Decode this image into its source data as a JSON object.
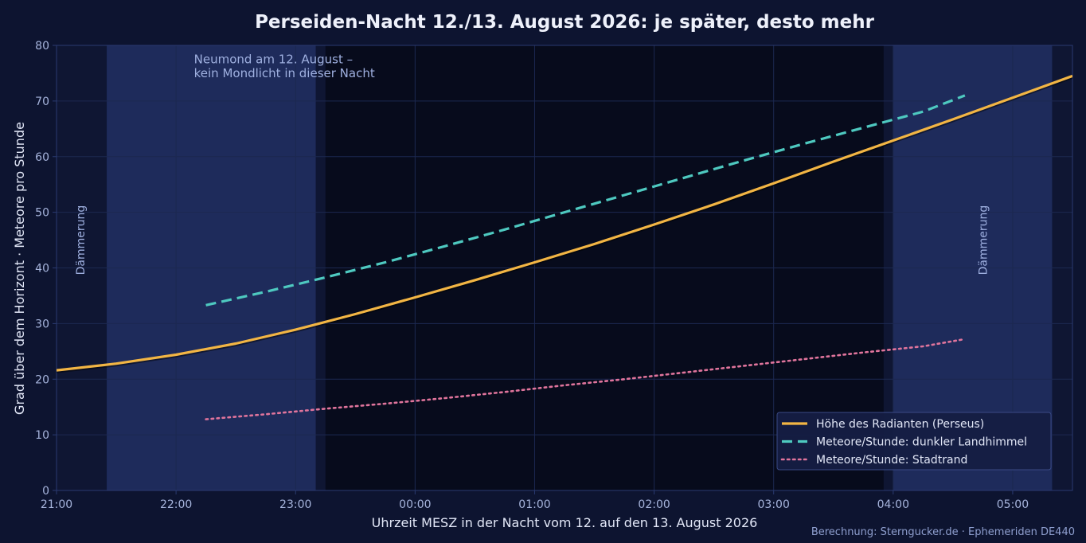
{
  "chart_data": {
    "type": "line",
    "title": "Perseiden-Nacht 12./13. August 2026: je später, desto mehr",
    "xlabel": "Uhrzeit MESZ in der Nacht vom 12. auf den 13. August 2026",
    "ylabel": "Grad über dem Horizont  ·  Meteore pro Stunde",
    "x_unit": "hours after 21:00 MESZ (12. August)",
    "xlim": [
      0,
      8.5
    ],
    "ylim": [
      0,
      80
    ],
    "xticks": [
      0,
      1,
      2,
      3,
      4,
      5,
      6,
      7,
      8
    ],
    "xtick_labels": [
      "21:00",
      "22:00",
      "23:00",
      "00:00",
      "01:00",
      "02:00",
      "03:00",
      "04:00",
      "05:00"
    ],
    "yticks": [
      0,
      10,
      20,
      30,
      40,
      50,
      60,
      70,
      80
    ],
    "grid": true,
    "legend_position": "lower-right",
    "shaded_regions": [
      {
        "label": "Dämmerung",
        "x0": 0,
        "x1": 0.42,
        "tone": "dark"
      },
      {
        "label": "",
        "x0": 0.42,
        "x1": 2.17,
        "tone": "light"
      },
      {
        "label": "",
        "x0": 2.17,
        "x1": 2.25,
        "tone": "dark"
      },
      {
        "label": "",
        "x0": 6.92,
        "x1": 7.0,
        "tone": "dark"
      },
      {
        "label": "Dämmerung",
        "x0": 7.0,
        "x1": 8.33,
        "tone": "light"
      },
      {
        "label": "",
        "x0": 8.33,
        "x1": 8.5,
        "tone": "dark"
      }
    ],
    "annotations": [
      {
        "text": "Neumond am 12. August –",
        "x": 1.15,
        "y": 77.5
      },
      {
        "text": "kein Mondlicht in dieser Nacht",
        "x": 1.15,
        "y": 75.0
      }
    ],
    "series": [
      {
        "name": "Höhe des Radianten (Perseus)",
        "color": "#f2b544",
        "style": "solid",
        "x": [
          0,
          0.5,
          1,
          1.5,
          2,
          2.5,
          3,
          3.5,
          4,
          4.5,
          5,
          5.5,
          6,
          6.5,
          7,
          7.5,
          8,
          8.5
        ],
        "y": [
          21.6,
          22.8,
          24.4,
          26.4,
          28.9,
          31.7,
          34.7,
          37.8,
          41.0,
          44.3,
          47.8,
          51.4,
          55.2,
          59.1,
          62.9,
          66.7,
          70.6,
          74.5
        ]
      },
      {
        "name": "Meteore/Stunde: dunkler Landhimmel",
        "color": "#4ec9c0",
        "style": "dashed",
        "x": [
          1.25,
          1.75,
          2.25,
          2.75,
          3.25,
          3.75,
          4.25,
          4.75,
          5.25,
          5.75,
          6.25,
          6.75,
          7.25,
          7.6
        ],
        "y": [
          33.3,
          35.7,
          38.3,
          41.0,
          43.9,
          46.9,
          50.0,
          53.1,
          56.2,
          59.3,
          62.3,
          65.2,
          68.1,
          71.0
        ]
      },
      {
        "name": "Meteore/Stunde: Stadtrand",
        "color": "#e0749c",
        "style": "dotted",
        "x": [
          1.25,
          1.75,
          2.25,
          2.75,
          3.25,
          3.75,
          4.25,
          4.75,
          5.25,
          5.75,
          6.25,
          6.75,
          7.25,
          7.6
        ],
        "y": [
          12.8,
          13.7,
          14.7,
          15.6,
          16.6,
          17.7,
          18.9,
          20.0,
          21.2,
          22.4,
          23.6,
          24.8,
          25.9,
          27.2
        ]
      }
    ],
    "source": "Berechnung: Sterngucker.de · Ephemeriden DE440"
  },
  "colors": {
    "page_bg": "#0d1430",
    "plot_bg": "#070b1c",
    "shade_light": "#1e2b5b",
    "shade_dark": "#0f1633",
    "grid": "#1c2850",
    "axis": "#2a3a70",
    "tick_text": "#a6b4dc",
    "title_text": "#eef1fb",
    "label_text": "#e2e7f7",
    "annotation_text": "#9fb0e0",
    "legend_bg": "#151d43",
    "legend_border": "#3a4a85",
    "source_text": "#8f9fcf"
  }
}
